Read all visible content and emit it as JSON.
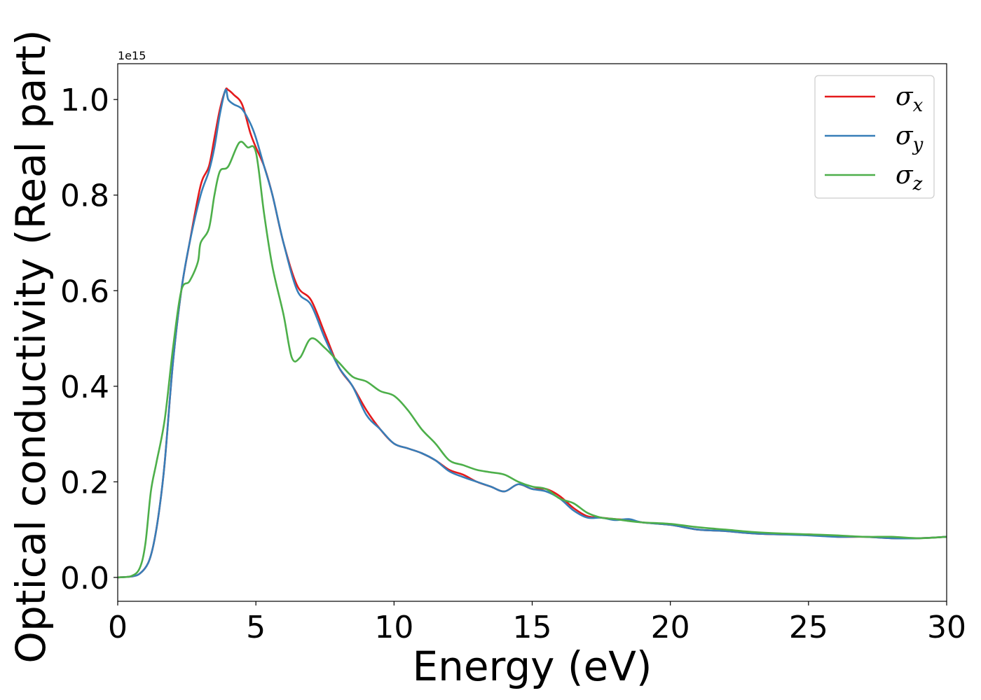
{
  "chart_data": {
    "type": "line",
    "title": "",
    "xlabel": "Energy (eV)",
    "ylabel": "Optical conductivity (Real part)",
    "y_offset_text": "1e15",
    "xlim": [
      0,
      30
    ],
    "ylim": [
      -0.05,
      1.075
    ],
    "x_ticks": [
      0,
      5,
      10,
      15,
      20,
      25,
      30
    ],
    "x_tick_labels": [
      "0",
      "5",
      "10",
      "15",
      "20",
      "25",
      "30"
    ],
    "y_ticks": [
      0.0,
      0.2,
      0.4,
      0.6,
      0.8,
      1.0
    ],
    "y_tick_labels": [
      "0.0",
      "0.2",
      "0.4",
      "0.6",
      "0.8",
      "1.0"
    ],
    "grid": false,
    "legend_position": "top-right",
    "series": [
      {
        "name": "σx",
        "legend_base": "σ",
        "legend_sub": "x",
        "color": "#e41a1c",
        "x": [
          0,
          0.5,
          0.8,
          1.1,
          1.3,
          1.5,
          1.7,
          2.0,
          2.3,
          2.6,
          3.0,
          3.3,
          3.5,
          3.7,
          3.9,
          4.0,
          4.2,
          4.5,
          4.8,
          5.0,
          5.3,
          5.6,
          6.0,
          6.5,
          7.0,
          7.5,
          8.0,
          8.5,
          9.0,
          9.5,
          10.0,
          10.5,
          11.0,
          11.5,
          12.0,
          12.5,
          13.0,
          13.5,
          14.0,
          14.5,
          15.0,
          15.5,
          16.0,
          16.5,
          17.0,
          17.5,
          18.0,
          18.5,
          19.0,
          20.0,
          21.0,
          22.0,
          23.0,
          24.0,
          25.0,
          26.0,
          27.0,
          28.0,
          29.0,
          30.0
        ],
        "y": [
          0.0,
          0.002,
          0.008,
          0.03,
          0.07,
          0.14,
          0.24,
          0.45,
          0.6,
          0.7,
          0.82,
          0.86,
          0.92,
          0.98,
          1.02,
          1.02,
          1.01,
          0.99,
          0.93,
          0.9,
          0.86,
          0.8,
          0.7,
          0.61,
          0.58,
          0.51,
          0.44,
          0.4,
          0.35,
          0.31,
          0.28,
          0.27,
          0.26,
          0.245,
          0.225,
          0.215,
          0.2,
          0.19,
          0.18,
          0.195,
          0.185,
          0.185,
          0.17,
          0.145,
          0.128,
          0.125,
          0.122,
          0.12,
          0.115,
          0.11,
          0.1,
          0.097,
          0.092,
          0.09,
          0.09,
          0.085,
          0.085,
          0.082,
          0.082,
          0.085
        ]
      },
      {
        "name": "σy",
        "legend_base": "σ",
        "legend_sub": "y",
        "color": "#377eb8",
        "x": [
          0,
          0.5,
          0.8,
          1.1,
          1.3,
          1.5,
          1.7,
          2.0,
          2.3,
          2.6,
          3.0,
          3.3,
          3.5,
          3.7,
          3.9,
          4.0,
          4.2,
          4.5,
          4.8,
          5.0,
          5.3,
          5.6,
          6.0,
          6.5,
          7.0,
          7.5,
          8.0,
          8.5,
          9.0,
          9.5,
          10.0,
          10.5,
          11.0,
          11.5,
          12.0,
          12.5,
          13.0,
          13.5,
          14.0,
          14.5,
          15.0,
          15.5,
          16.0,
          16.5,
          17.0,
          17.5,
          18.0,
          18.5,
          19.0,
          20.0,
          21.0,
          22.0,
          23.0,
          24.0,
          25.0,
          26.0,
          27.0,
          28.0,
          29.0,
          30.0
        ],
        "y": [
          0.0,
          0.002,
          0.008,
          0.03,
          0.07,
          0.14,
          0.24,
          0.45,
          0.6,
          0.7,
          0.8,
          0.85,
          0.9,
          0.97,
          1.02,
          1.0,
          0.99,
          0.98,
          0.95,
          0.92,
          0.86,
          0.8,
          0.7,
          0.6,
          0.57,
          0.5,
          0.44,
          0.4,
          0.34,
          0.31,
          0.28,
          0.27,
          0.26,
          0.245,
          0.222,
          0.21,
          0.2,
          0.19,
          0.18,
          0.195,
          0.185,
          0.18,
          0.165,
          0.14,
          0.125,
          0.125,
          0.12,
          0.122,
          0.115,
          0.11,
          0.1,
          0.097,
          0.092,
          0.09,
          0.088,
          0.085,
          0.085,
          0.082,
          0.082,
          0.085
        ]
      },
      {
        "name": "σz",
        "legend_base": "σ",
        "legend_sub": "z",
        "color": "#4daf4a",
        "x": [
          0,
          0.5,
          0.8,
          1.0,
          1.2,
          1.4,
          1.7,
          2.0,
          2.3,
          2.6,
          2.9,
          3.0,
          3.3,
          3.5,
          3.7,
          4.0,
          4.4,
          4.7,
          5.0,
          5.3,
          5.6,
          6.0,
          6.3,
          6.6,
          7.0,
          7.5,
          8.0,
          8.5,
          9.0,
          9.5,
          10.0,
          10.5,
          11.0,
          11.5,
          12.0,
          12.5,
          13.0,
          13.5,
          14.0,
          14.5,
          15.0,
          15.5,
          16.0,
          16.5,
          17.0,
          17.5,
          18.0,
          18.5,
          19.0,
          20.0,
          21.0,
          22.0,
          23.0,
          24.0,
          25.0,
          26.0,
          27.0,
          28.0,
          29.0,
          30.0
        ],
        "y": [
          0.0,
          0.003,
          0.02,
          0.07,
          0.18,
          0.24,
          0.33,
          0.48,
          0.6,
          0.62,
          0.66,
          0.7,
          0.73,
          0.8,
          0.85,
          0.86,
          0.91,
          0.9,
          0.89,
          0.76,
          0.65,
          0.55,
          0.46,
          0.46,
          0.5,
          0.48,
          0.45,
          0.42,
          0.41,
          0.39,
          0.38,
          0.35,
          0.31,
          0.28,
          0.245,
          0.235,
          0.225,
          0.22,
          0.215,
          0.2,
          0.19,
          0.185,
          0.165,
          0.155,
          0.135,
          0.125,
          0.122,
          0.118,
          0.115,
          0.112,
          0.105,
          0.1,
          0.095,
          0.092,
          0.09,
          0.088,
          0.085,
          0.085,
          0.082,
          0.085
        ]
      }
    ]
  }
}
